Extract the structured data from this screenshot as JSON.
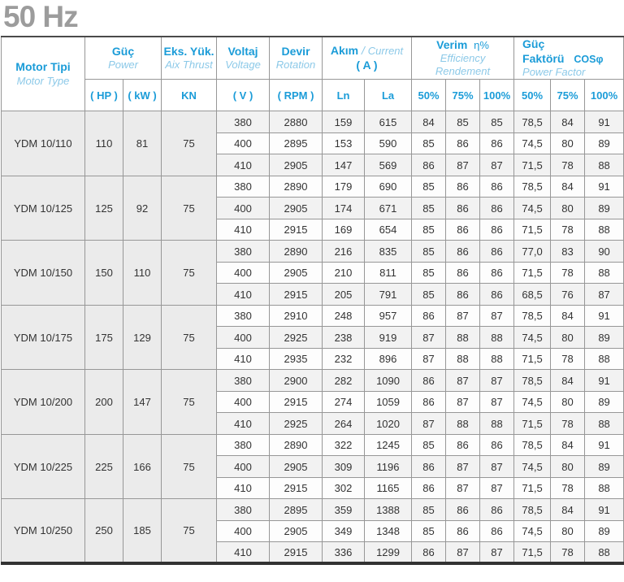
{
  "page_title": "50 Hz",
  "colors": {
    "header_primary_blue": "#1b9cd8",
    "header_secondary_blue": "#8cc9e8",
    "title_gray": "#9c9c9c",
    "border_gray": "#979797",
    "group_cell_bg": "#ebebeb",
    "shaded_row_bg": "#f2f2f2"
  },
  "table": {
    "header": {
      "motor": {
        "tr": "Motor Tipi",
        "en": "Motor Type"
      },
      "guc": {
        "tr": "Güç",
        "en": "Power",
        "sub": [
          "( HP )",
          "( kW )"
        ]
      },
      "eks_yuk": {
        "tr": "Eks. Yük.",
        "en": "Aix Thrust",
        "sub": "KN"
      },
      "voltaj": {
        "tr": "Voltaj",
        "en": "Voltage",
        "sub": "( V )"
      },
      "devir": {
        "tr": "Devir",
        "en": "Rotation",
        "sub": "( RPM )"
      },
      "akim": {
        "tr": "Akım",
        "slash": " / ",
        "en": "Current",
        "unit": "( A )",
        "sub": [
          "Ln",
          "La"
        ]
      },
      "verim": {
        "tr": "Verim",
        "symbol": "η%",
        "en": "Efficiency Rendement",
        "sub": [
          "50%",
          "75%",
          "100%"
        ]
      },
      "guc_faktoru": {
        "tr": "Güç Faktörü",
        "cos": "COSφ",
        "en": "Power Factor",
        "sub": [
          "50%",
          "75%",
          "100%"
        ]
      }
    },
    "groups": [
      {
        "motor_type": "YDM 10/110",
        "hp": "110",
        "kw": "81",
        "kn": "75",
        "rows": [
          [
            "380",
            "2880",
            "159",
            "615",
            "84",
            "85",
            "85",
            "78,5",
            "84",
            "91"
          ],
          [
            "400",
            "2895",
            "153",
            "590",
            "85",
            "86",
            "86",
            "74,5",
            "80",
            "89"
          ],
          [
            "410",
            "2905",
            "147",
            "569",
            "86",
            "87",
            "87",
            "71,5",
            "78",
            "88"
          ]
        ]
      },
      {
        "motor_type": "YDM 10/125",
        "hp": "125",
        "kw": "92",
        "kn": "75",
        "rows": [
          [
            "380",
            "2890",
            "179",
            "690",
            "85",
            "86",
            "86",
            "78,5",
            "84",
            "91"
          ],
          [
            "400",
            "2905",
            "174",
            "671",
            "85",
            "86",
            "86",
            "74,5",
            "80",
            "89"
          ],
          [
            "410",
            "2915",
            "169",
            "654",
            "85",
            "86",
            "86",
            "71,5",
            "78",
            "88"
          ]
        ]
      },
      {
        "motor_type": "YDM 10/150",
        "hp": "150",
        "kw": "110",
        "kn": "75",
        "rows": [
          [
            "380",
            "2890",
            "216",
            "835",
            "85",
            "86",
            "86",
            "77,0",
            "83",
            "90"
          ],
          [
            "400",
            "2905",
            "210",
            "811",
            "85",
            "86",
            "86",
            "71,5",
            "78",
            "88"
          ],
          [
            "410",
            "2915",
            "205",
            "791",
            "85",
            "86",
            "86",
            "68,5",
            "76",
            "87"
          ]
        ]
      },
      {
        "motor_type": "YDM 10/175",
        "hp": "175",
        "kw": "129",
        "kn": "75",
        "rows": [
          [
            "380",
            "2910",
            "248",
            "957",
            "86",
            "87",
            "87",
            "78,5",
            "84",
            "91"
          ],
          [
            "400",
            "2925",
            "238",
            "919",
            "87",
            "88",
            "88",
            "74,5",
            "80",
            "89"
          ],
          [
            "410",
            "2935",
            "232",
            "896",
            "87",
            "88",
            "88",
            "71,5",
            "78",
            "88"
          ]
        ]
      },
      {
        "motor_type": "YDM 10/200",
        "hp": "200",
        "kw": "147",
        "kn": "75",
        "rows": [
          [
            "380",
            "2900",
            "282",
            "1090",
            "86",
            "87",
            "87",
            "78,5",
            "84",
            "91"
          ],
          [
            "400",
            "2915",
            "274",
            "1059",
            "86",
            "87",
            "87",
            "74,5",
            "80",
            "89"
          ],
          [
            "410",
            "2925",
            "264",
            "1020",
            "87",
            "88",
            "88",
            "71,5",
            "78",
            "88"
          ]
        ]
      },
      {
        "motor_type": "YDM 10/225",
        "hp": "225",
        "kw": "166",
        "kn": "75",
        "rows": [
          [
            "380",
            "2890",
            "322",
            "1245",
            "85",
            "86",
            "86",
            "78,5",
            "84",
            "91"
          ],
          [
            "400",
            "2905",
            "309",
            "1196",
            "86",
            "87",
            "87",
            "74,5",
            "80",
            "89"
          ],
          [
            "410",
            "2915",
            "302",
            "1165",
            "86",
            "87",
            "87",
            "71,5",
            "78",
            "88"
          ]
        ]
      },
      {
        "motor_type": "YDM 10/250",
        "hp": "250",
        "kw": "185",
        "kn": "75",
        "rows": [
          [
            "380",
            "2895",
            "359",
            "1388",
            "85",
            "86",
            "86",
            "78,5",
            "84",
            "91"
          ],
          [
            "400",
            "2905",
            "349",
            "1348",
            "85",
            "86",
            "86",
            "74,5",
            "80",
            "89"
          ],
          [
            "410",
            "2915",
            "336",
            "1299",
            "86",
            "87",
            "87",
            "71,5",
            "78",
            "88"
          ]
        ]
      }
    ]
  }
}
